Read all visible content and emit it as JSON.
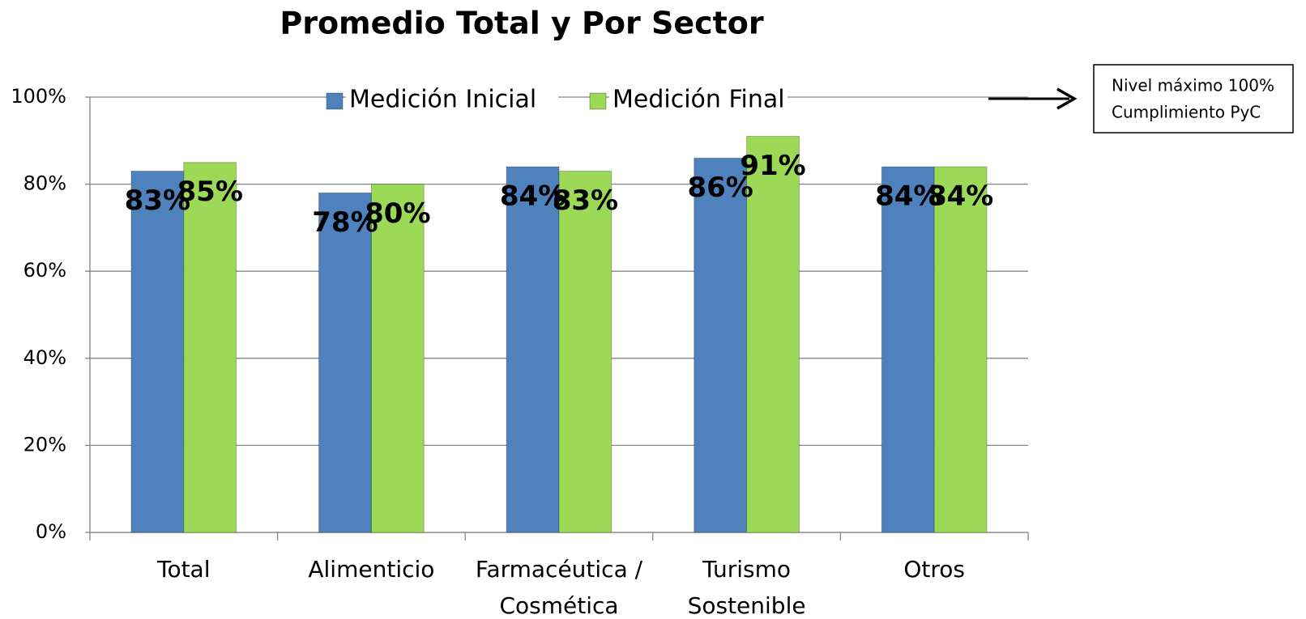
{
  "chart_data": {
    "type": "bar",
    "title": "Promedio Total  y Por Sector",
    "categories": [
      "Total",
      "Alimenticio",
      "Farmacéutica / Cosmética",
      "Turismo Sostenible",
      "Otros"
    ],
    "series": [
      {
        "name": "Medición Inicial",
        "color": "#4f81bd",
        "values": [
          83,
          78,
          84,
          86,
          84
        ],
        "value_labels": [
          "83%",
          "78%",
          "84%",
          "86%",
          "84%"
        ]
      },
      {
        "name": "Medición Final",
        "color": "#9bd957",
        "values": [
          85,
          80,
          83,
          91,
          84
        ],
        "value_labels": [
          "85%",
          "80%",
          "83%",
          "91%",
          "84%"
        ]
      }
    ],
    "ylim": [
      0,
      100
    ],
    "yticks": [
      {
        "value": 0,
        "label": "0%"
      },
      {
        "value": 20,
        "label": "20%"
      },
      {
        "value": 40,
        "label": "40%"
      },
      {
        "value": 60,
        "label": "60%"
      },
      {
        "value": 80,
        "label": "80%"
      },
      {
        "value": 100,
        "label": "100%"
      }
    ],
    "grid": true,
    "legend": "top",
    "annotation": [
      "Nivel máximo 100%",
      "Cumplimiento PyC"
    ]
  }
}
